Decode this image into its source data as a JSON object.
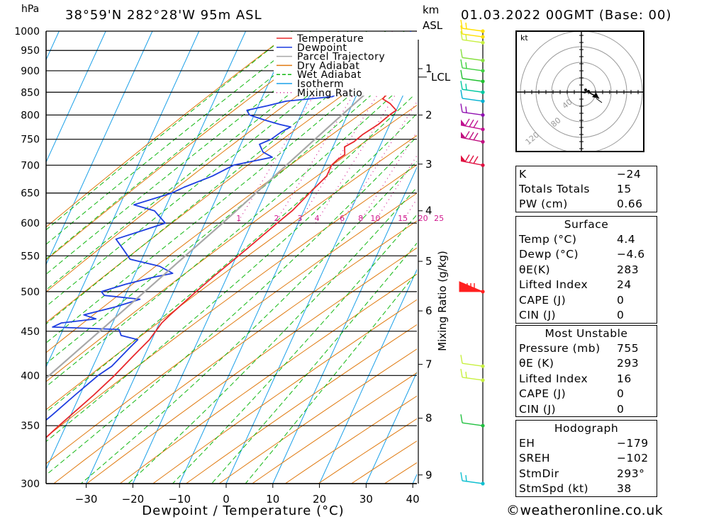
{
  "header": {
    "pressure_unit": "hPa",
    "location": "38°59'N  282°28'W  95m  ASL",
    "height_unit": "km",
    "height_unit2": "ASL",
    "datetime": "01.03.2022  00GMT  (Base: 00)"
  },
  "footer": {
    "site": "weatheronline.co.uk",
    "copyright_symbol": "©"
  },
  "colors": {
    "temperature": "#e8282c",
    "dewpoint": "#1e3ee0",
    "parcel": "#a8a8a8",
    "dry_adiabat": "#e07a10",
    "wet_adiabat": "#12b812",
    "isotherm": "#1aa0e8",
    "mixing_ratio": "#d0188e"
  },
  "chart_data": {
    "type": "line",
    "xlabel": "Dewpoint / Temperature (°C)",
    "x_ticks": [
      -30,
      -20,
      -10,
      0,
      10,
      20,
      30,
      40
    ],
    "xlim": [
      -40,
      40
    ],
    "pressure_ticks": [
      1000,
      950,
      900,
      850,
      800,
      750,
      700,
      650,
      600,
      550,
      500,
      450,
      400,
      350,
      300
    ],
    "ylim": [
      1000,
      300
    ],
    "km_ticks": [
      {
        "label": "1",
        "p": 905
      },
      {
        "label": "2",
        "p": 800
      },
      {
        "label": "3",
        "p": 702
      },
      {
        "label": "4",
        "p": 620
      },
      {
        "label": "5",
        "p": 542
      },
      {
        "label": "6",
        "p": 475
      },
      {
        "label": "7",
        "p": 412
      },
      {
        "label": "8",
        "p": 357
      },
      {
        "label": "9",
        "p": 307
      }
    ],
    "lcl": {
      "label": "LCL",
      "p": 885
    },
    "mixing_ratio_axis_label": "Mixing Ratio (g/kg)",
    "mixing_ratio_labels": [
      "1",
      "2",
      "3",
      "4",
      "6",
      "8",
      "10",
      "15",
      "20",
      "25"
    ],
    "mixing_ratio_values": [
      1,
      2,
      3,
      4,
      6,
      8,
      10,
      15,
      20,
      25
    ],
    "legend": [
      "Temperature",
      "Dewpoint",
      "Parcel Trajectory",
      "Dry Adiabat",
      "Wet Adiabat",
      "Isotherm",
      "Mixing Ratio"
    ],
    "series": [
      {
        "name": "Temperature",
        "points": [
          [
            1000,
            4.4
          ],
          [
            970,
            2.5
          ],
          [
            940,
            1.0
          ],
          [
            900,
            -0.5
          ],
          [
            870,
            -2.2
          ],
          [
            850,
            -3.5
          ],
          [
            835,
            -4.0
          ],
          [
            825,
            -2.0
          ],
          [
            810,
            0.0
          ],
          [
            800,
            -1.0
          ],
          [
            780,
            -2.5
          ],
          [
            760,
            -4.8
          ],
          [
            745,
            -6.0
          ],
          [
            735,
            -7.5
          ],
          [
            720,
            -6.7
          ],
          [
            710,
            -7.8
          ],
          [
            700,
            -8.5
          ],
          [
            680,
            -8.5
          ],
          [
            650,
            -10.5
          ],
          [
            620,
            -12.5
          ],
          [
            600,
            -14.5
          ],
          [
            560,
            -18.5
          ],
          [
            520,
            -23.0
          ],
          [
            500,
            -25.2
          ],
          [
            470,
            -28.5
          ],
          [
            460,
            -29.5
          ],
          [
            450,
            -30.0
          ],
          [
            440,
            -30.5
          ],
          [
            420,
            -32.5
          ],
          [
            400,
            -34.5
          ],
          [
            380,
            -37.0
          ],
          [
            350,
            -41.5
          ],
          [
            330,
            -44.5
          ],
          [
            300,
            -49.0
          ]
        ]
      },
      {
        "name": "Dewpoint",
        "points": [
          [
            1000,
            -4.6
          ],
          [
            980,
            -4.6
          ],
          [
            950,
            -7.0
          ],
          [
            920,
            -9.5
          ],
          [
            900,
            -10.0
          ],
          [
            890,
            -12.5
          ],
          [
            860,
            -14.0
          ],
          [
            850,
            -14.0
          ],
          [
            840,
            -15.0
          ],
          [
            830,
            -24.5
          ],
          [
            820,
            -28.0
          ],
          [
            810,
            -32.0
          ],
          [
            800,
            -31.0
          ],
          [
            790,
            -27.5
          ],
          [
            780,
            -23.5
          ],
          [
            775,
            -21.0
          ],
          [
            765,
            -22.5
          ],
          [
            750,
            -24.0
          ],
          [
            740,
            -26.0
          ],
          [
            725,
            -24.5
          ],
          [
            715,
            -22.0
          ],
          [
            700,
            -29.5
          ],
          [
            680,
            -33.0
          ],
          [
            660,
            -38.0
          ],
          [
            650,
            -40.0
          ],
          [
            630,
            -47.0
          ],
          [
            620,
            -42.0
          ],
          [
            600,
            -38.5
          ],
          [
            590,
            -42.0
          ],
          [
            575,
            -47.5
          ],
          [
            560,
            -45.0
          ],
          [
            545,
            -42.5
          ],
          [
            535,
            -35.5
          ],
          [
            525,
            -32.0
          ],
          [
            520,
            -35.5
          ],
          [
            510,
            -41.0
          ],
          [
            500,
            -45.5
          ],
          [
            495,
            -44.5
          ],
          [
            490,
            -36.5
          ],
          [
            480,
            -41.0
          ],
          [
            470,
            -47.0
          ],
          [
            465,
            -44.0
          ],
          [
            460,
            -51.0
          ],
          [
            455,
            -52.5
          ],
          [
            452,
            -38.0
          ],
          [
            445,
            -37.0
          ],
          [
            440,
            -33.0
          ],
          [
            430,
            -34.0
          ],
          [
            410,
            -36.0
          ],
          [
            400,
            -38.0
          ],
          [
            380,
            -41.0
          ],
          [
            360,
            -44.0
          ],
          [
            340,
            -47.5
          ],
          [
            320,
            -51.0
          ],
          [
            305,
            -53.0
          ],
          [
            300,
            -53.5
          ]
        ]
      },
      {
        "name": "Parcel Trajectory",
        "points": [
          [
            1000,
            4.4
          ],
          [
            950,
            0.0
          ],
          [
            900,
            -4.5
          ],
          [
            885,
            -5.8
          ],
          [
            850,
            -8.0
          ],
          [
            800,
            -11.2
          ],
          [
            750,
            -14.6
          ],
          [
            700,
            -18.2
          ],
          [
            650,
            -22.0
          ],
          [
            600,
            -26.2
          ],
          [
            550,
            -31.0
          ],
          [
            500,
            -36.2
          ],
          [
            450,
            -42.0
          ],
          [
            400,
            -48.5
          ],
          [
            350,
            -56.0
          ],
          [
            300,
            -64.5
          ]
        ]
      }
    ],
    "wind_barbs": [
      {
        "p": 1000,
        "color": "#ffe000"
      },
      {
        "p": 985,
        "color": "#ffe000"
      },
      {
        "p": 970,
        "color": "#c8f040"
      },
      {
        "p": 925,
        "color": "#88e040"
      },
      {
        "p": 900,
        "color": "#40d040"
      },
      {
        "p": 875,
        "color": "#20c030"
      },
      {
        "p": 850,
        "color": "#00c8a0"
      },
      {
        "p": 830,
        "color": "#00b0d0"
      },
      {
        "p": 800,
        "color": "#9010b0"
      },
      {
        "p": 770,
        "color": "#c01090"
      },
      {
        "p": 745,
        "color": "#c01080"
      },
      {
        "p": 700,
        "color": "#e01040"
      },
      {
        "p": 500,
        "color": "#ff2020"
      },
      {
        "p": 410,
        "color": "#c8f040"
      },
      {
        "p": 395,
        "color": "#c8f040"
      },
      {
        "p": 350,
        "color": "#20c040"
      },
      {
        "p": 300,
        "color": "#10c0d0"
      }
    ]
  },
  "hodograph": {
    "unit_label": "kt",
    "ring_labels": [
      "40",
      "80",
      "120"
    ]
  },
  "indices": {
    "rows1": [
      {
        "label": "K",
        "value": "-24"
      },
      {
        "label": "Totals Totals",
        "value": "15"
      },
      {
        "label": "PW (cm)",
        "value": "0.66"
      }
    ],
    "surface_title": "Surface",
    "surface": [
      {
        "label": "Temp (°C)",
        "value": "4.4"
      },
      {
        "label": "Dewp (°C)",
        "value": "-4.6"
      },
      {
        "label": "θE(K)",
        "value": "283"
      },
      {
        "label": "Lifted Index",
        "value": "24"
      },
      {
        "label": "CAPE (J)",
        "value": "0"
      },
      {
        "label": "CIN (J)",
        "value": "0"
      }
    ],
    "mu_title": "Most Unstable",
    "mu": [
      {
        "label": "Pressure (mb)",
        "value": "755"
      },
      {
        "label": "θE (K)",
        "value": "293"
      },
      {
        "label": "Lifted Index",
        "value": "16"
      },
      {
        "label": "CAPE (J)",
        "value": "0"
      },
      {
        "label": "CIN (J)",
        "value": "0"
      }
    ],
    "hodo_title": "Hodograph",
    "hodo": [
      {
        "label": "EH",
        "value": "-179"
      },
      {
        "label": "SREH",
        "value": "-102"
      },
      {
        "label": "StmDir",
        "value": "293°"
      },
      {
        "label": "StmSpd (kt)",
        "value": "38"
      }
    ]
  }
}
